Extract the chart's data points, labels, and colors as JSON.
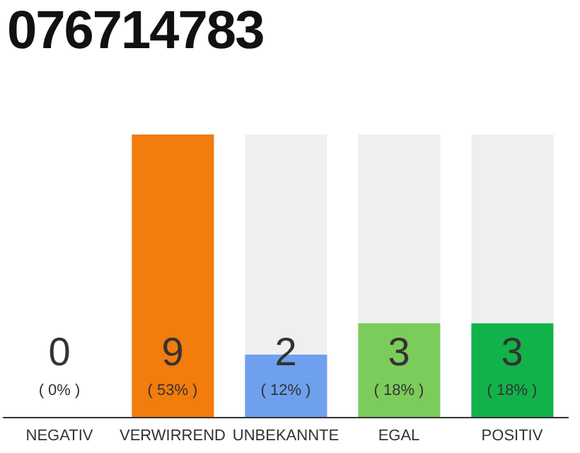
{
  "chart_data": {
    "type": "bar",
    "title": "076714783",
    "categories": [
      "NEGATIV",
      "VERWIRREND",
      "UNBEKANNTE",
      "EGAL",
      "POSITIV"
    ],
    "values": [
      0,
      9,
      2,
      3,
      3
    ],
    "colors": [
      "#d0d0d0",
      "#f27c0c",
      "#6ea0ee",
      "#7ccc5c",
      "#12b24a"
    ],
    "ylim": [
      0,
      9
    ],
    "data_labels": true,
    "annotations": [
      "( 0% )",
      "( 53% )",
      "( 12% )",
      "( 18% )",
      "( 18% )"
    ]
  }
}
